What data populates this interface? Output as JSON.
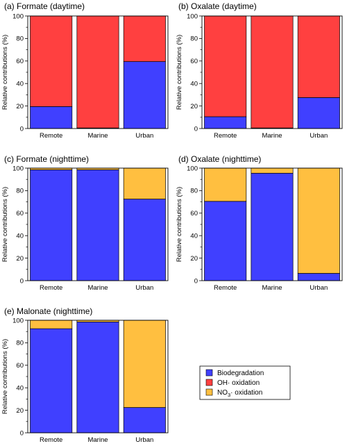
{
  "colors": {
    "biodegradation": "#4040ff",
    "oh_oxidation": "#ff4040",
    "no3_oxidation": "#ffbf40"
  },
  "legend": {
    "items": [
      {
        "key": "biodegradation",
        "label": "Biodegradation",
        "color": "#4040ff"
      },
      {
        "key": "oh_oxidation",
        "label": "OH· oxidation",
        "color": "#ff4040"
      },
      {
        "key": "no3_oxidation",
        "label": "NO3· oxidation",
        "color": "#ffbf40"
      }
    ]
  },
  "chart_data": [
    {
      "type": "bar",
      "stacked": true,
      "title": "(a) Formate (daytime)",
      "ylabel": "Relative contributions (%)",
      "ylim": [
        0,
        100
      ],
      "yticks": [
        0,
        20,
        40,
        60,
        80,
        100
      ],
      "categories": [
        "Remote",
        "Marine",
        "Urban"
      ],
      "series": [
        {
          "name": "Biodegradation",
          "values": [
            19.5,
            0.5,
            59.5
          ]
        },
        {
          "name": "OH· oxidation",
          "values": [
            80.5,
            99.5,
            40.5
          ]
        }
      ]
    },
    {
      "type": "bar",
      "stacked": true,
      "title": "(b) Oxalate (daytime)",
      "ylabel": "Relative contributions (%)",
      "ylim": [
        0,
        100
      ],
      "yticks": [
        0,
        20,
        40,
        60,
        80,
        100
      ],
      "categories": [
        "Remote",
        "Marine",
        "Urban"
      ],
      "series": [
        {
          "name": "Biodegradation",
          "values": [
            10.5,
            0.5,
            27.5
          ]
        },
        {
          "name": "OH· oxidation",
          "values": [
            89.5,
            99.5,
            72.5
          ]
        }
      ]
    },
    {
      "type": "bar",
      "stacked": true,
      "title": "(c) Formate (nighttime)",
      "ylabel": "Relative contributions (%)",
      "ylim": [
        0,
        100
      ],
      "yticks": [
        0,
        20,
        40,
        60,
        80,
        100
      ],
      "categories": [
        "Remote",
        "Marine",
        "Urban"
      ],
      "series": [
        {
          "name": "Biodegradation",
          "values": [
            98.5,
            98.5,
            72.5
          ]
        },
        {
          "name": "NO3· oxidation",
          "values": [
            1.5,
            1.5,
            27.5
          ]
        }
      ]
    },
    {
      "type": "bar",
      "stacked": true,
      "title": "(d) Oxalate (nighttime)",
      "ylabel": "Relative contributions (%)",
      "ylim": [
        0,
        100
      ],
      "yticks": [
        0,
        20,
        40,
        60,
        80,
        100
      ],
      "categories": [
        "Remote",
        "Marine",
        "Urban"
      ],
      "series": [
        {
          "name": "Biodegradation",
          "values": [
            70.5,
            95.5,
            6.5
          ]
        },
        {
          "name": "NO3· oxidation",
          "values": [
            29.5,
            4.5,
            93.5
          ]
        }
      ]
    },
    {
      "type": "bar",
      "stacked": true,
      "title": "(e) Malonate (nighttime)",
      "ylabel": "Relative contributions (%)",
      "ylim": [
        0,
        100
      ],
      "yticks": [
        0,
        20,
        40,
        60,
        80,
        100
      ],
      "categories": [
        "Remote",
        "Marine",
        "Urban"
      ],
      "series": [
        {
          "name": "Biodegradation",
          "values": [
            92.5,
            98.5,
            22.5
          ]
        },
        {
          "name": "NO3· oxidation",
          "values": [
            7.5,
            1.5,
            77.5
          ]
        }
      ]
    }
  ]
}
